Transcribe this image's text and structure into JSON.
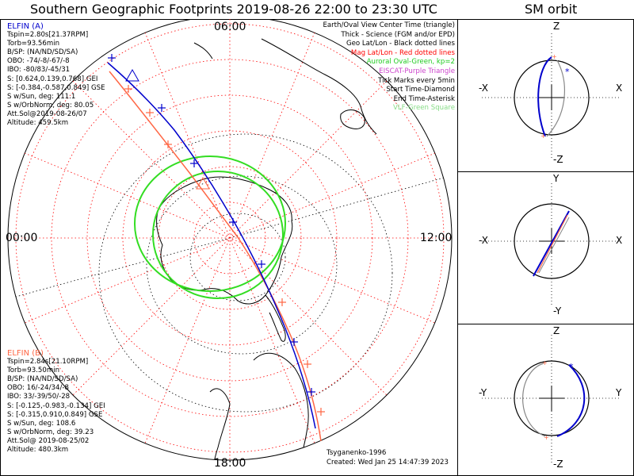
{
  "title": "Southern Geographic Footprints 2019-08-26 22:00 to 23:30 UTC",
  "side_title": "SM orbit",
  "mlt_labels": {
    "top": "06:00",
    "left": "00:00",
    "right": "12:00",
    "bottom": "18:00"
  },
  "legend": [
    {
      "text": "Earth/Oval View Center Time (triangle)",
      "color": "#000000"
    },
    {
      "text": "Thick - Science (FGM and/or EPD)",
      "color": "#000000"
    },
    {
      "text": "Geo Lat/Lon - Black dotted lines",
      "color": "#000000"
    },
    {
      "text": "Mag Lat/Lon - Red dotted lines",
      "color": "#ff0000"
    },
    {
      "text": "Auroral Oval-Green, kp=2",
      "color": "#22cc22"
    },
    {
      "text": "EISCAT-Purple Triangle",
      "color": "#cc44cc"
    },
    {
      "text": "Tick Marks every 5min",
      "color": "#000000"
    },
    {
      "text": "Start Time-Diamond",
      "color": "#000000"
    },
    {
      "text": "End Time-Asterisk",
      "color": "#000000"
    },
    {
      "text": "VLF-Green Square",
      "color": "#88dd88"
    }
  ],
  "elfin_a": {
    "name": "ELFIN (A)",
    "color": "#0000cc",
    "lines": [
      "Tspin=2.80s[21.37RPM]",
      "Torb=93.56min",
      "B/SP: (NA/ND/SD/SA)",
      "OBO: -74/-8/-67/-8",
      "IBO: -80/83/-45/31",
      "S: [0.624,0.139,0.768] GEI",
      "S: [-0.384,-0.587,0.849] GSE",
      "S w/Sun, deg: 111.1",
      "S w/OrbNorm, deg: 80.05",
      "Att.Sol@2019-08-26/07",
      "Altitude: 459.5km"
    ]
  },
  "elfin_b": {
    "name": "ELFIN (B)",
    "color": "#ff6644",
    "lines": [
      "Tspin=2.84s[21.10RPM]",
      "Torb=93.50min",
      "B/SP: (NA/ND/SD/SA)",
      "OBO: 16/-24/34/-8",
      "IBO: 33/-39/50/-28",
      "S: [-0.125,-0.983,-0.134] GEI",
      "S: [-0.315,0.910,0.849] GSE",
      "S w/Sun, deg: 108.6",
      "S w/OrbNorm, deg: 39.23",
      "Att.Sol@ 2019-08-25/02",
      "Altitude: 480.3km"
    ]
  },
  "model": "Tsyganenko-1996",
  "created": "Created: Wed Jan 25 14:47:39 2023",
  "orbit_panels": [
    {
      "top": "Z",
      "bottom": "-Z",
      "left": "-X",
      "right": "X"
    },
    {
      "top": "Y",
      "bottom": "-Y",
      "left": "-X",
      "right": "X"
    },
    {
      "top": "Z",
      "bottom": "-Z",
      "left": "-Y",
      "right": "Y"
    }
  ],
  "colors": {
    "elfin_a": "#0000cc",
    "elfin_b": "#ff6644",
    "oval": "#33dd22",
    "mag_grid": "#ff0000",
    "geo_grid": "#000000"
  }
}
